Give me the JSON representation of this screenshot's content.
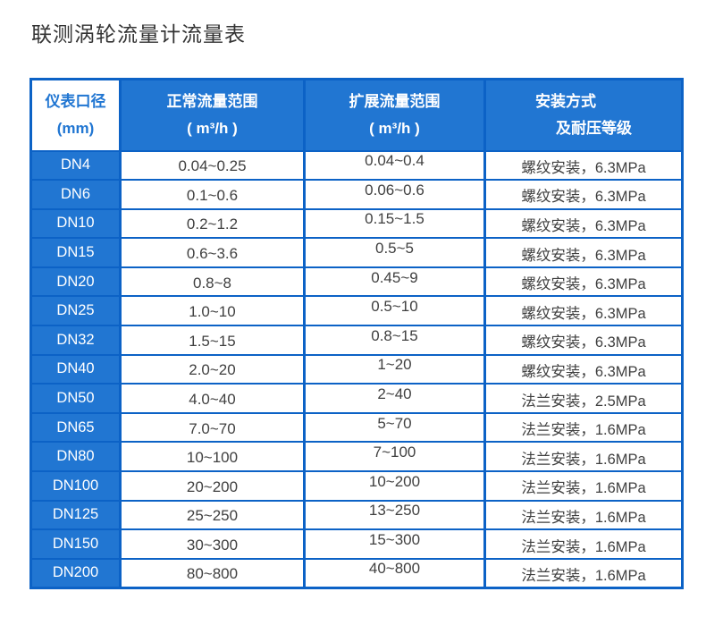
{
  "page": {
    "title": "联测涡轮流量计流量表"
  },
  "colors": {
    "accent": "#2176d2",
    "border": "#0c62c6",
    "text-dark": "#404040",
    "title": "#333333"
  },
  "table": {
    "columns": [
      {
        "line1": "仪表口径",
        "line2": "(mm)"
      },
      {
        "line1": "正常流量范围",
        "line2": "( m³/h )"
      },
      {
        "line1": "扩展流量范围",
        "line2": "( m³/h )"
      },
      {
        "line1": "安装方式",
        "line2": "及耐压等级"
      }
    ],
    "rows": [
      {
        "dn": "DN4",
        "normal": "0.04~0.25",
        "extended": "0.04~0.4",
        "install": "螺纹安装，6.3MPa"
      },
      {
        "dn": "DN6",
        "normal": "0.1~0.6",
        "extended": "0.06~0.6",
        "install": "螺纹安装，6.3MPa"
      },
      {
        "dn": "DN10",
        "normal": "0.2~1.2",
        "extended": "0.15~1.5",
        "install": "螺纹安装，6.3MPa"
      },
      {
        "dn": "DN15",
        "normal": "0.6~3.6",
        "extended": "0.5~5",
        "install": "螺纹安装，6.3MPa"
      },
      {
        "dn": "DN20",
        "normal": "0.8~8",
        "extended": "0.45~9",
        "install": "螺纹安装，6.3MPa"
      },
      {
        "dn": "DN25",
        "normal": "1.0~10",
        "extended": "0.5~10",
        "install": "螺纹安装，6.3MPa"
      },
      {
        "dn": "DN32",
        "normal": "1.5~15",
        "extended": "0.8~15",
        "install": "螺纹安装，6.3MPa"
      },
      {
        "dn": "DN40",
        "normal": "2.0~20",
        "extended": "1~20",
        "install": "螺纹安装，6.3MPa"
      },
      {
        "dn": "DN50",
        "normal": "4.0~40",
        "extended": "2~40",
        "install": "法兰安装，2.5MPa"
      },
      {
        "dn": "DN65",
        "normal": "7.0~70",
        "extended": "5~70",
        "install": "法兰安装，1.6MPa"
      },
      {
        "dn": "DN80",
        "normal": "10~100",
        "extended": "7~100",
        "install": "法兰安装，1.6MPa"
      },
      {
        "dn": "DN100",
        "normal": "20~200",
        "extended": "10~200",
        "install": "法兰安装，1.6MPa"
      },
      {
        "dn": "DN125",
        "normal": "25~250",
        "extended": "13~250",
        "install": "法兰安装，1.6MPa"
      },
      {
        "dn": "DN150",
        "normal": "30~300",
        "extended": "15~300",
        "install": "法兰安装，1.6MPa"
      },
      {
        "dn": "DN200",
        "normal": "80~800",
        "extended": "40~800",
        "install": "法兰安装，1.6MPa"
      }
    ]
  }
}
